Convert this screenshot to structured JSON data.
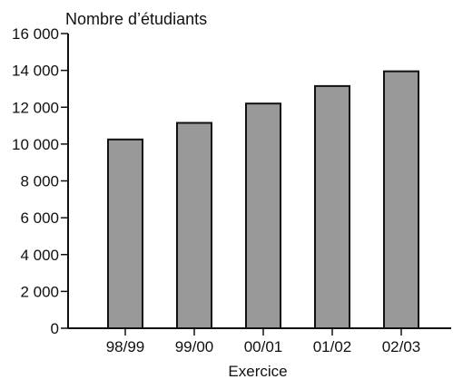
{
  "chart_data": {
    "type": "bar",
    "title": "",
    "ylabel": "Nombre d’étudiants",
    "xlabel": "Exercice",
    "categories": [
      "98/99",
      "99/00",
      "00/01",
      "01/02",
      "02/03"
    ],
    "values": [
      10250,
      11150,
      12200,
      13150,
      13950
    ],
    "ylim": [
      0,
      16000
    ],
    "yticks": [
      0,
      2000,
      4000,
      6000,
      8000,
      10000,
      12000,
      14000,
      16000
    ],
    "ytick_labels": [
      "0",
      "2 000",
      "4 000",
      "6 000",
      "8 000",
      "10 000",
      "12 000",
      "14 000",
      "16 000"
    ],
    "grid": false,
    "legend": "none",
    "bar_color": "#999999",
    "axis_color": "#111111"
  }
}
